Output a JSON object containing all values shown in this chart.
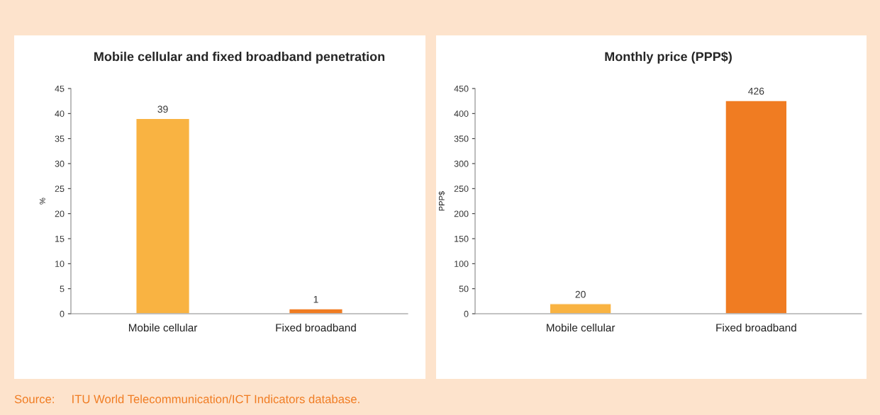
{
  "chart_data": [
    {
      "type": "bar",
      "title": "Mobile cellular and fixed broadband penetration",
      "ylabel": "%",
      "categories": [
        "Mobile cellular",
        "Fixed broadband"
      ],
      "values": [
        39,
        1
      ],
      "colors": [
        "#f9b342",
        "#f07c22"
      ],
      "ylim": [
        0,
        45
      ],
      "yticks": [
        0,
        5,
        10,
        15,
        20,
        25,
        30,
        35,
        40,
        45
      ],
      "data_labels": true,
      "grid": false,
      "annotations": [
        "Source:     ITU World Telecommunication/ICT Indicators database."
      ]
    },
    {
      "type": "bar",
      "title": "Monthly price (PPP$)",
      "ylabel": "PPP$",
      "categories": [
        "Mobile cellular",
        "Fixed broadband"
      ],
      "values": [
        20,
        426
      ],
      "colors": [
        "#f9b342",
        "#f07c22"
      ],
      "ylim": [
        0,
        450
      ],
      "yticks": [
        0,
        50,
        100,
        150,
        200,
        250,
        300,
        350,
        400,
        450
      ],
      "data_labels": true,
      "grid": false
    }
  ]
}
